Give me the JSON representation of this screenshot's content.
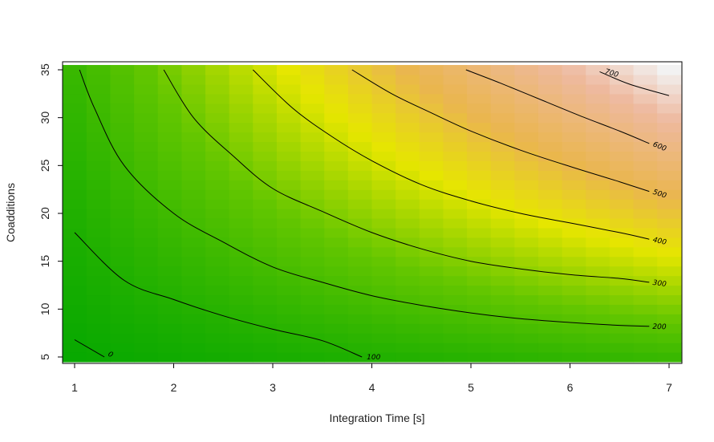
{
  "chart_data": {
    "type": "heatmap",
    "title": "",
    "xlabel": "Integration Time [s]",
    "ylabel": "Coadditions",
    "xlim": [
      1,
      7
    ],
    "ylim": [
      5,
      35
    ],
    "x_ticks": [
      "1",
      "2",
      "3",
      "4",
      "5",
      "6",
      "7"
    ],
    "y_ticks": [
      "5",
      "10",
      "15",
      "20",
      "25",
      "30",
      "35"
    ],
    "grid": false,
    "legend": "none",
    "colormap": "terrain (green to yellow to tan to white)",
    "color_stops": [
      "#00a600",
      "#63c600",
      "#e6e600",
      "#eab64e",
      "#eeb99f",
      "#f2f2f2"
    ],
    "cell_grid": {
      "x_steps": 26,
      "y_steps": 31
    },
    "value_model": "z = 5 * x * y (approximate)",
    "contour_levels": [
      {
        "level": 0,
        "label": "0",
        "points": [
          [
            1.0,
            6.8
          ],
          [
            1.3,
            5.0
          ]
        ]
      },
      {
        "level": 100,
        "label": "100",
        "points": [
          [
            1.0,
            18
          ],
          [
            1.5,
            13
          ],
          [
            2.0,
            11
          ],
          [
            2.5,
            9.3
          ],
          [
            3.0,
            7.9
          ],
          [
            3.5,
            6.7
          ],
          [
            3.9,
            5.0
          ]
        ]
      },
      {
        "level": 200,
        "label": "200",
        "points": [
          [
            1.05,
            35
          ],
          [
            1.2,
            31
          ],
          [
            1.5,
            25
          ],
          [
            2.0,
            20
          ],
          [
            2.5,
            17
          ],
          [
            3.0,
            14.4
          ],
          [
            3.5,
            12.8
          ],
          [
            4.0,
            11.4
          ],
          [
            4.5,
            10.4
          ],
          [
            5.0,
            9.6
          ],
          [
            5.5,
            9.0
          ],
          [
            6.0,
            8.6
          ],
          [
            6.5,
            8.3
          ],
          [
            6.8,
            8.2
          ]
        ]
      },
      {
        "level": 300,
        "label": "300",
        "points": [
          [
            1.9,
            35
          ],
          [
            2.2,
            30
          ],
          [
            2.6,
            26
          ],
          [
            3.0,
            22.6
          ],
          [
            3.5,
            20.2
          ],
          [
            4.0,
            18
          ],
          [
            4.5,
            16.3
          ],
          [
            5.0,
            15
          ],
          [
            5.5,
            14.2
          ],
          [
            6.0,
            13.6
          ],
          [
            6.5,
            13.2
          ],
          [
            6.8,
            12.8
          ]
        ]
      },
      {
        "level": 400,
        "label": "400",
        "points": [
          [
            2.8,
            35
          ],
          [
            3.2,
            31
          ],
          [
            3.6,
            28
          ],
          [
            4.0,
            25.5
          ],
          [
            4.5,
            23
          ],
          [
            5.0,
            21.3
          ],
          [
            5.5,
            20
          ],
          [
            6.0,
            19
          ],
          [
            6.5,
            18
          ],
          [
            6.8,
            17.3
          ]
        ]
      },
      {
        "level": 500,
        "label": "500",
        "points": [
          [
            3.8,
            35
          ],
          [
            4.2,
            32.5
          ],
          [
            4.6,
            30.5
          ],
          [
            5.0,
            28.6
          ],
          [
            5.5,
            26.6
          ],
          [
            6.0,
            24.9
          ],
          [
            6.5,
            23.3
          ],
          [
            6.8,
            22.3
          ]
        ]
      },
      {
        "level": 600,
        "label": "600",
        "points": [
          [
            4.95,
            35
          ],
          [
            5.3,
            33.6
          ],
          [
            5.7,
            31.9
          ],
          [
            6.1,
            30.2
          ],
          [
            6.5,
            28.6
          ],
          [
            6.8,
            27.3
          ]
        ]
      },
      {
        "level": 700,
        "label": "700",
        "points": [
          [
            6.3,
            34.8
          ],
          [
            6.6,
            33.5
          ],
          [
            7.0,
            32.3
          ]
        ]
      }
    ]
  }
}
